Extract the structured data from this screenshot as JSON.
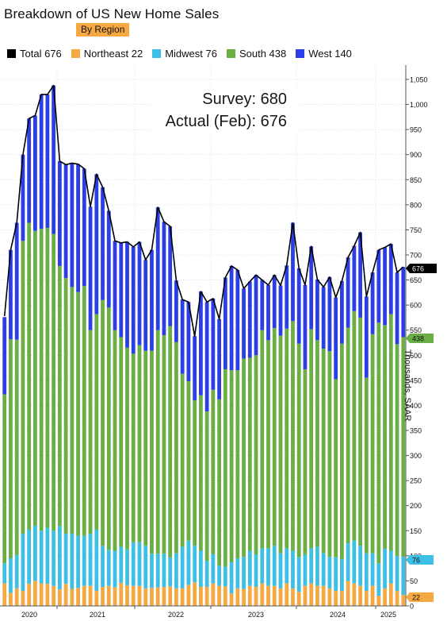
{
  "header": {
    "title": "Breakdown of US New Home Sales",
    "subtitle": "By Region"
  },
  "legend": [
    {
      "label": "Total 676",
      "color": "#000000"
    },
    {
      "label": "Northeast 22",
      "color": "#f7a941"
    },
    {
      "label": "Midwest 76",
      "color": "#3ec0e6"
    },
    {
      "label": "South 438",
      "color": "#6aae44"
    },
    {
      "label": "West 140",
      "color": "#2c3fe6"
    }
  ],
  "annotation": {
    "survey": "Survey:  680",
    "actual": "Actual (Feb):  676"
  },
  "chart_data": {
    "type": "bar",
    "stacked": true,
    "ylabel": "Thousands, SAAR",
    "ylim": [
      0,
      1050
    ],
    "yticks": [
      0,
      50,
      100,
      150,
      200,
      250,
      300,
      350,
      400,
      450,
      500,
      550,
      600,
      650,
      700,
      750,
      800,
      850,
      900,
      950,
      1000,
      1050
    ],
    "ytick_labels": [
      "0",
      "50",
      "100",
      "150",
      "200",
      "250",
      "300",
      "350",
      "400",
      "450",
      "500",
      "550",
      "600",
      "650",
      "700",
      "750",
      "800",
      "850",
      "900",
      "950",
      "1,000",
      "1,050"
    ],
    "x_year_labels": [
      "2020",
      "2021",
      "2022",
      "2023",
      "2024",
      "2025"
    ],
    "x_year_start_index": [
      0,
      12,
      24,
      36,
      48,
      60
    ],
    "months": [
      "2019-09",
      "2019-10",
      "2019-11",
      "2019-12",
      "2020-01",
      "2020-02",
      "2020-03",
      "2020-04",
      "2020-05",
      "2020-06",
      "2020-07",
      "2020-08",
      "2020-09",
      "2020-10",
      "2020-11",
      "2020-12",
      "2021-01",
      "2021-02",
      "2021-03",
      "2021-04",
      "2021-05",
      "2021-06",
      "2021-07",
      "2021-08",
      "2021-09",
      "2021-10",
      "2021-11",
      "2021-12",
      "2022-01",
      "2022-02",
      "2022-03",
      "2022-04",
      "2022-05",
      "2022-06",
      "2022-07",
      "2022-08",
      "2022-09",
      "2022-10",
      "2022-11",
      "2022-12",
      "2023-01",
      "2023-02",
      "2023-03",
      "2023-04",
      "2023-05",
      "2023-06",
      "2023-07",
      "2023-08",
      "2023-09",
      "2023-10",
      "2023-11",
      "2023-12",
      "2024-01",
      "2024-02",
      "2024-03",
      "2024-04",
      "2024-05",
      "2024-06",
      "2024-07",
      "2024-08",
      "2024-09",
      "2024-10",
      "2024-11",
      "2024-12",
      "2025-01",
      "2025-02"
    ],
    "series": [
      {
        "name": "Northeast",
        "color": "#f7a941",
        "values": [
          45,
          26,
          35,
          30,
          44,
          50,
          45,
          44,
          40,
          33,
          44,
          34,
          36,
          40,
          40,
          30,
          38,
          40,
          37,
          46,
          41,
          40,
          40,
          35,
          36,
          37,
          38,
          39,
          35,
          35,
          42,
          47,
          38,
          38,
          45,
          40,
          39,
          25,
          35,
          34,
          40,
          38,
          45,
          40,
          40,
          35,
          45,
          35,
          28,
          40,
          45,
          40,
          40,
          35,
          30,
          30,
          50,
          45,
          40,
          30,
          40,
          20,
          35,
          45,
          30,
          22
        ]
      },
      {
        "name": "Midwest",
        "color": "#3ec0e6",
        "values": [
          40,
          69,
          67,
          114,
          108,
          110,
          105,
          112,
          110,
          126,
          100,
          110,
          104,
          100,
          104,
          122,
          82,
          72,
          73,
          72,
          72,
          87,
          87,
          85,
          68,
          67,
          66,
          58,
          70,
          83,
          88,
          73,
          72,
          52,
          58,
          40,
          39,
          62,
          60,
          64,
          70,
          65,
          70,
          75,
          80,
          70,
          70,
          75,
          70,
          62,
          70,
          78,
          65,
          63,
          67,
          63,
          75,
          85,
          80,
          75,
          65,
          65,
          79,
          65,
          70,
          76
        ]
      },
      {
        "name": "South",
        "color": "#6aae44",
        "values": [
          337,
          437,
          429,
          584,
          612,
          588,
          602,
          598,
          592,
          519,
          510,
          492,
          486,
          498,
          406,
          430,
          490,
          483,
          440,
          418,
          402,
          376,
          393,
          389,
          405,
          446,
          436,
          461,
          421,
          345,
          318,
          290,
          310,
          298,
          328,
          332,
          394,
          383,
          375,
          395,
          385,
          397,
          435,
          415,
          434,
          434,
          438,
          458,
          425,
          370,
          437,
          412,
          408,
          410,
          355,
          430,
          430,
          458,
          455,
          350,
          437,
          480,
          446,
          472,
          422,
          438
        ]
      },
      {
        "name": "West",
        "color": "#2c3fe6",
        "values": [
          154,
          178,
          233,
          172,
          208,
          230,
          268,
          266,
          296,
          209,
          226,
          247,
          255,
          234,
          246,
          279,
          225,
          193,
          178,
          188,
          211,
          213,
          206,
          181,
          201,
          245,
          226,
          199,
          123,
          148,
          158,
          128,
          207,
          218,
          182,
          160,
          183,
          208,
          200,
          140,
          152,
          160,
          100,
          110,
          106,
          100,
          126,
          196,
          150,
          168,
          165,
          121,
          123,
          148,
          163,
          125,
          140,
          130,
          170,
          162,
          123,
          145,
          155,
          140,
          143,
          140
        ]
      }
    ],
    "total": [
      578,
      710,
      764,
      900,
      972,
      978,
      1020,
      1020,
      1038,
      887,
      880,
      883,
      881,
      872,
      796,
      861,
      835,
      788,
      728,
      724,
      726,
      716,
      726,
      690,
      710,
      795,
      766,
      757,
      649,
      611,
      606,
      538,
      627,
      606,
      613,
      572,
      655,
      678,
      670,
      633,
      647,
      660,
      650,
      640,
      660,
      639,
      679,
      764,
      673,
      640,
      717,
      651,
      636,
      656,
      615,
      648,
      695,
      718,
      745,
      617,
      665,
      710,
      715,
      722,
      665,
      676
    ]
  }
}
